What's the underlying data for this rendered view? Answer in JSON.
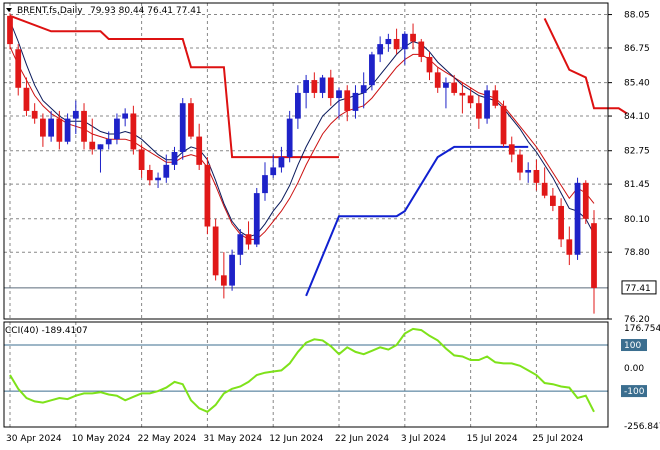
{
  "header": {
    "symbol": "BRENT.fs,Daily",
    "ohlc": "79.93 80.44 76.41 77.41"
  },
  "chart_data": [
    {
      "type": "candlestick",
      "ylim": [
        76.2,
        88.5
      ],
      "yticks": [
        "88.05",
        "86.75",
        "85.40",
        "84.10",
        "82.75",
        "81.45",
        "80.10",
        "78.80",
        "77.41",
        "76.20"
      ],
      "ytick_values": [
        88.05,
        86.75,
        85.4,
        84.1,
        82.75,
        81.45,
        80.1,
        78.8,
        76.2
      ],
      "current_price": "77.41",
      "current_price_value": 77.41,
      "xticks": [
        "30 Apr 2024",
        "10 May 2024",
        "22 May 2024",
        "31 May 2024",
        "12 Jun 2024",
        "22 Jun 2024",
        "3 Jul 2024",
        "15 Jul 2024",
        "25 Jul 2024"
      ],
      "xtick_index": [
        0,
        8,
        16,
        24,
        32,
        40,
        48,
        56,
        64
      ],
      "grid": true,
      "colors": {
        "up": "#1e22c8",
        "down": "#e01818",
        "ma_fast": "#0a1a5c",
        "ma_slow": "#cc1111",
        "stop_upper": "#dd1111",
        "stop_lower": "#1020d0",
        "grid": "#888888"
      },
      "candles": [
        [
          88.0,
          88.1,
          86.7,
          86.9
        ],
        [
          86.7,
          86.9,
          84.9,
          85.2
        ],
        [
          85.2,
          85.6,
          84.1,
          84.3
        ],
        [
          84.3,
          84.6,
          83.8,
          84.0
        ],
        [
          84.0,
          84.2,
          82.9,
          83.3
        ],
        [
          83.3,
          84.3,
          83.1,
          84.0
        ],
        [
          84.0,
          84.3,
          82.8,
          83.1
        ],
        [
          83.1,
          84.2,
          83.0,
          84.0
        ],
        [
          84.0,
          84.7,
          83.4,
          84.3
        ],
        [
          84.3,
          84.6,
          82.8,
          83.1
        ],
        [
          83.1,
          84.0,
          82.6,
          82.8
        ],
        [
          82.8,
          83.0,
          81.9,
          83.0
        ],
        [
          83.0,
          83.5,
          82.8,
          83.2
        ],
        [
          83.2,
          84.2,
          83.0,
          84.0
        ],
        [
          84.0,
          84.4,
          83.7,
          84.2
        ],
        [
          84.2,
          84.5,
          82.6,
          82.8
        ],
        [
          82.8,
          83.0,
          81.7,
          82.0
        ],
        [
          82.0,
          82.2,
          81.4,
          81.6
        ],
        [
          81.6,
          81.9,
          81.3,
          81.7
        ],
        [
          81.7,
          82.6,
          81.5,
          82.2
        ],
        [
          82.2,
          82.9,
          82.0,
          82.7
        ],
        [
          82.7,
          84.8,
          82.4,
          84.6
        ],
        [
          84.6,
          84.8,
          83.2,
          83.3
        ],
        [
          83.3,
          83.8,
          82.0,
          82.2
        ],
        [
          82.2,
          82.5,
          79.5,
          79.8
        ],
        [
          79.8,
          80.1,
          77.7,
          77.9
        ],
        [
          77.9,
          78.8,
          77.0,
          77.5
        ],
        [
          77.5,
          78.9,
          77.3,
          78.7
        ],
        [
          78.7,
          79.7,
          78.3,
          79.5
        ],
        [
          79.5,
          80.0,
          78.9,
          79.1
        ],
        [
          79.1,
          81.3,
          79.0,
          81.1
        ],
        [
          81.1,
          82.3,
          80.8,
          81.8
        ],
        [
          81.8,
          82.6,
          81.7,
          82.1
        ],
        [
          82.1,
          82.9,
          81.9,
          82.5
        ],
        [
          82.5,
          84.3,
          82.3,
          84.0
        ],
        [
          84.0,
          85.3,
          83.6,
          85.0
        ],
        [
          85.0,
          85.7,
          84.4,
          85.5
        ],
        [
          85.5,
          85.8,
          84.8,
          85.0
        ],
        [
          85.0,
          85.7,
          84.8,
          85.6
        ],
        [
          85.6,
          85.9,
          84.5,
          84.8
        ],
        [
          84.8,
          85.2,
          84.0,
          85.1
        ],
        [
          85.1,
          85.3,
          83.9,
          84.3
        ],
        [
          84.3,
          85.3,
          84.0,
          85.0
        ],
        [
          85.0,
          85.8,
          84.4,
          85.3
        ],
        [
          85.3,
          86.6,
          85.1,
          86.5
        ],
        [
          86.5,
          87.2,
          86.2,
          86.9
        ],
        [
          86.9,
          87.3,
          86.6,
          87.1
        ],
        [
          87.1,
          87.5,
          86.5,
          86.7
        ],
        [
          86.7,
          87.4,
          86.1,
          87.3
        ],
        [
          87.3,
          87.7,
          86.7,
          87.0
        ],
        [
          87.0,
          87.1,
          86.2,
          86.4
        ],
        [
          86.4,
          86.6,
          85.5,
          85.8
        ],
        [
          85.8,
          86.0,
          85.0,
          85.2
        ],
        [
          85.2,
          85.6,
          84.4,
          85.4
        ],
        [
          85.4,
          85.7,
          84.9,
          85.0
        ],
        [
          85.0,
          85.4,
          84.2,
          84.9
        ],
        [
          84.9,
          85.2,
          84.4,
          84.6
        ],
        [
          84.6,
          84.9,
          83.6,
          84.0
        ],
        [
          84.0,
          85.3,
          83.8,
          85.1
        ],
        [
          85.1,
          85.3,
          84.4,
          84.5
        ],
        [
          84.5,
          84.7,
          82.9,
          83.0
        ],
        [
          83.0,
          83.3,
          82.3,
          82.6
        ],
        [
          82.6,
          82.8,
          81.6,
          81.9
        ],
        [
          81.9,
          82.3,
          81.5,
          82.0
        ],
        [
          82.0,
          82.4,
          81.2,
          81.5
        ],
        [
          81.5,
          82.1,
          80.9,
          81.0
        ],
        [
          81.0,
          81.3,
          80.4,
          80.6
        ],
        [
          80.6,
          80.9,
          79.0,
          79.3
        ],
        [
          79.3,
          79.8,
          78.3,
          78.7
        ],
        [
          78.7,
          81.7,
          78.5,
          81.5
        ],
        [
          81.5,
          81.6,
          79.9,
          80.1
        ],
        [
          79.93,
          80.44,
          76.41,
          77.41
        ]
      ],
      "ma_fast": [
        87.8,
        87.0,
        86.1,
        85.3,
        84.7,
        84.4,
        84.1,
        83.9,
        83.9,
        83.9,
        83.7,
        83.5,
        83.4,
        83.4,
        83.5,
        83.4,
        83.2,
        82.9,
        82.6,
        82.4,
        82.4,
        82.7,
        82.9,
        82.8,
        82.4,
        81.6,
        80.7,
        80.0,
        79.6,
        79.4,
        79.5,
        79.9,
        80.4,
        80.8,
        81.4,
        82.2,
        82.9,
        83.5,
        84.1,
        84.4,
        84.7,
        84.8,
        84.9,
        85.0,
        85.3,
        85.7,
        86.1,
        86.5,
        86.8,
        87.0,
        86.9,
        86.6,
        86.2,
        85.9,
        85.6,
        85.3,
        85.1,
        84.9,
        84.8,
        84.7,
        84.4,
        84.0,
        83.6,
        83.1,
        82.7,
        82.2,
        81.7,
        81.1,
        80.5,
        80.4,
        80.1,
        79.5
      ],
      "ma_slow": [
        86.8,
        86.1,
        85.5,
        84.9,
        84.5,
        84.2,
        84.0,
        83.8,
        83.7,
        83.6,
        83.4,
        83.3,
        83.2,
        83.2,
        83.2,
        83.1,
        82.9,
        82.7,
        82.5,
        82.3,
        82.3,
        82.5,
        82.6,
        82.5,
        82.1,
        81.4,
        80.6,
        79.9,
        79.5,
        79.3,
        79.3,
        79.6,
        80.0,
        80.4,
        80.9,
        81.5,
        82.2,
        82.8,
        83.4,
        83.8,
        84.1,
        84.3,
        84.4,
        84.5,
        84.8,
        85.2,
        85.6,
        86.0,
        86.3,
        86.5,
        86.5,
        86.3,
        86.0,
        85.8,
        85.6,
        85.4,
        85.2,
        85.0,
        84.9,
        84.8,
        84.5,
        84.1,
        83.7,
        83.3,
        82.9,
        82.4,
        81.9,
        81.4,
        80.9,
        81.3,
        81.1,
        80.7
      ],
      "stop_upper": [
        [
          0,
          88.0
        ],
        [
          5,
          87.4
        ],
        [
          11,
          87.4
        ],
        [
          12,
          87.1
        ],
        [
          21,
          87.1
        ],
        [
          22,
          86.0
        ],
        [
          26,
          86.0
        ],
        [
          27,
          82.5
        ],
        [
          40,
          82.5
        ],
        [
          40.01,
          null
        ],
        [
          65,
          87.9
        ],
        [
          68,
          85.9
        ],
        [
          70,
          85.6
        ],
        [
          71,
          84.4
        ],
        [
          74,
          84.4
        ],
        [
          75,
          84.2
        ]
      ],
      "stop_lower": [
        [
          36,
          77.1
        ],
        [
          40,
          80.2
        ],
        [
          47,
          80.2
        ],
        [
          48,
          80.4
        ],
        [
          52,
          82.5
        ],
        [
          54,
          82.9
        ],
        [
          63,
          82.9
        ]
      ]
    },
    {
      "type": "line",
      "title": "CCI(40) -189.4107",
      "ylim": [
        -256,
        200
      ],
      "yticks": [
        "176.7541",
        "100",
        "0.00",
        "-100",
        "-256.847"
      ],
      "ytick_values": [
        176.7541,
        100,
        0,
        -100,
        -256.847
      ],
      "levels": [
        100,
        -100
      ],
      "current": -189.4107,
      "values": [
        -30,
        -90,
        -130,
        -145,
        -150,
        -140,
        -130,
        -135,
        -120,
        -110,
        -110,
        -105,
        -115,
        -120,
        -140,
        -125,
        -110,
        -110,
        -100,
        -85,
        -60,
        -70,
        -140,
        -175,
        -190,
        -160,
        -110,
        -90,
        -80,
        -60,
        -30,
        -20,
        -15,
        -10,
        20,
        70,
        110,
        125,
        120,
        95,
        60,
        90,
        70,
        60,
        75,
        90,
        80,
        100,
        150,
        170,
        165,
        140,
        120,
        85,
        55,
        50,
        35,
        35,
        50,
        25,
        20,
        20,
        10,
        -10,
        -30,
        -65,
        -70,
        -80,
        -85,
        -130,
        -120,
        -190
      ]
    }
  ]
}
